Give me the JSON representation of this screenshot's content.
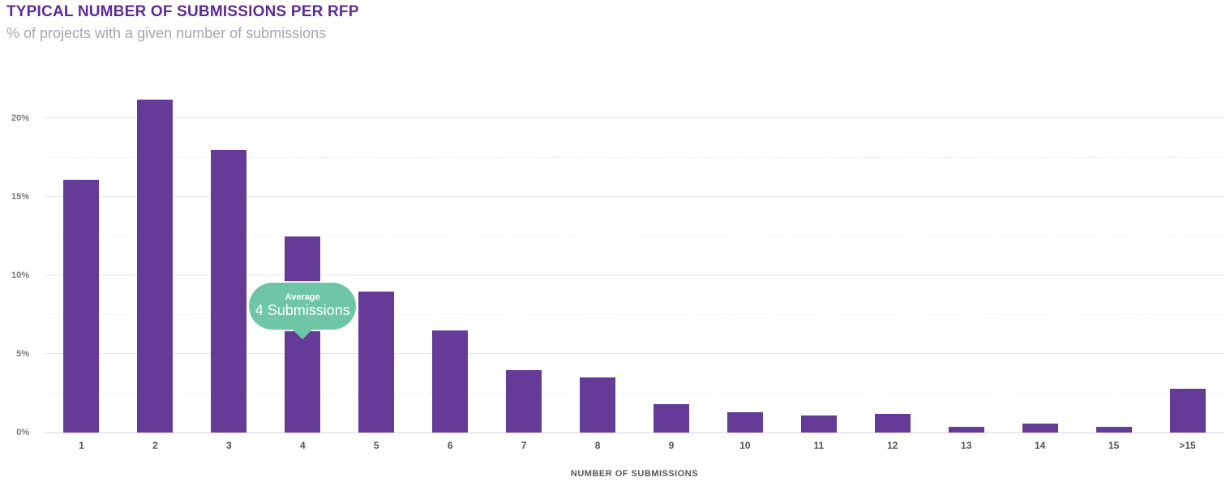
{
  "header": {
    "title": "TYPICAL NUMBER OF SUBMISSIONS PER RFP",
    "subtitle": "% of projects with a given number of submissions"
  },
  "chart_data": {
    "type": "bar",
    "title": "TYPICAL NUMBER OF SUBMISSIONS PER RFP",
    "subtitle": "% of projects with a given number of submissions",
    "categories": [
      "1",
      "2",
      "3",
      "4",
      "5",
      "6",
      "7",
      "8",
      "9",
      "10",
      "11",
      "12",
      "13",
      "14",
      "15",
      ">15"
    ],
    "values": [
      16.1,
      21.2,
      18.0,
      12.5,
      9.0,
      6.5,
      4.0,
      3.5,
      1.8,
      1.3,
      1.1,
      1.2,
      0.35,
      0.55,
      0.35,
      2.8
    ],
    "xlabel": "NUMBER OF SUBMISSIONS",
    "ylabel": "",
    "ylim": [
      0,
      22.45
    ],
    "yticks": [
      {
        "value": 0,
        "label": "0%"
      },
      {
        "value": 5,
        "label": "5%"
      },
      {
        "value": 10,
        "label": "10%"
      },
      {
        "value": 15,
        "label": "15%"
      },
      {
        "value": 20,
        "label": "20%"
      }
    ],
    "yticks_minor": [
      2.5,
      7.5,
      12.5,
      17.5
    ],
    "grid": true,
    "legend": "none",
    "bar_color": "#663a97",
    "annotation": {
      "label": "Average",
      "value_text": "4 Submissions",
      "anchor_category": "4",
      "color": "#6fc6a6"
    }
  },
  "colors": {
    "bar": "#663a97",
    "title": "#5c2c90",
    "subtitle": "#a8a5ad",
    "annotation": "#6fc6a6",
    "axis_text": "#545356"
  }
}
